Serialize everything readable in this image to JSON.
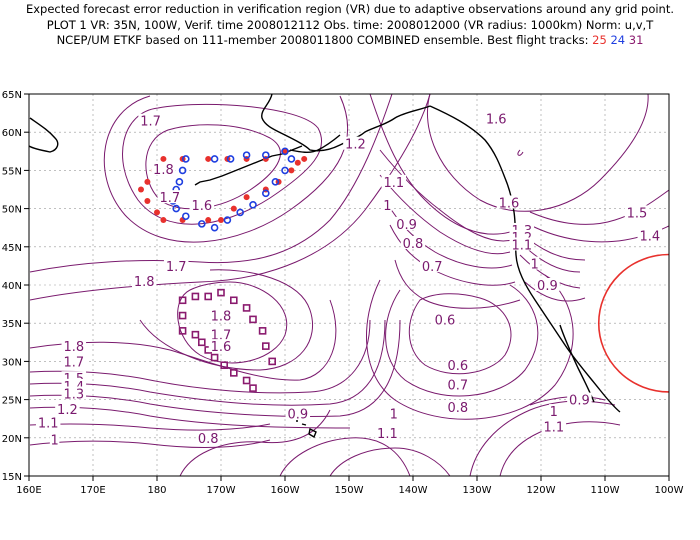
{
  "title": {
    "line1": "Expected forecast error reduction in verification region (VR) due to adaptive observations around any grid point.",
    "line2": "PLOT 1 VR: 35N, 100W, Verif. time 2008012112 Obs. time: 2008012000 (VR radius: 1000km) Norm: u,v,T",
    "line3_prefix": "NCEP/UM ETKF based on 111-member 2008011800 COMBINED ensemble.  Best flight tracks:",
    "track_25": "25",
    "track_24": "24",
    "track_31": "31"
  },
  "colors": {
    "contour": "#7a1a6e",
    "track_25": "#e8312d",
    "track_24": "#1f3fe0",
    "track_31": "#8a1a6e",
    "vr_circle": "#e8312d"
  },
  "axes": {
    "lon_labels": [
      "160E",
      "170E",
      "180",
      "170W",
      "160W",
      "150W",
      "140W",
      "130W",
      "120W",
      "110W",
      "100W"
    ],
    "lat_labels": [
      "65N",
      "60N",
      "55N",
      "50N",
      "45N",
      "40N",
      "35N",
      "30N",
      "25N",
      "20N",
      "15N"
    ]
  },
  "contour_labels": [
    {
      "t": "1.7",
      "lon": 179,
      "lat": 61.5
    },
    {
      "t": "1.8",
      "lon": -179,
      "lat": 55.2
    },
    {
      "t": "1.7",
      "lon": -178,
      "lat": 51.5
    },
    {
      "t": "1.6",
      "lon": -173,
      "lat": 50.5
    },
    {
      "t": "1.2",
      "lon": -149,
      "lat": 58.5
    },
    {
      "t": "1.1",
      "lon": -143,
      "lat": 53.5
    },
    {
      "t": "1",
      "lon": -144,
      "lat": 50.5
    },
    {
      "t": "0.9",
      "lon": -141,
      "lat": 48
    },
    {
      "t": "0.8",
      "lon": -140,
      "lat": 45.5
    },
    {
      "t": "0.7",
      "lon": -137,
      "lat": 42.5
    },
    {
      "t": "1.6",
      "lon": -127,
      "lat": 61.8
    },
    {
      "t": "1.6",
      "lon": -125,
      "lat": 50.8
    },
    {
      "t": "1.5",
      "lon": -105,
      "lat": 49.5
    },
    {
      "t": "1.4",
      "lon": -103,
      "lat": 46.5
    },
    {
      "t": "1.3",
      "lon": -123,
      "lat": 47.2
    },
    {
      "t": "1.2",
      "lon": -123,
      "lat": 46.3
    },
    {
      "t": "1.1",
      "lon": -123,
      "lat": 45.3
    },
    {
      "t": "1",
      "lon": -121,
      "lat": 42.8
    },
    {
      "t": "0.9",
      "lon": -119,
      "lat": 40
    },
    {
      "t": "1.7",
      "lon": -177,
      "lat": 42.5
    },
    {
      "t": "1.8",
      "lon": 178,
      "lat": 40.5
    },
    {
      "t": "1.8",
      "lon": -170,
      "lat": 36
    },
    {
      "t": "1.7",
      "lon": -170,
      "lat": 33.5
    },
    {
      "t": "1.6",
      "lon": -170,
      "lat": 32
    },
    {
      "t": "1.8",
      "lon": 167,
      "lat": 32
    },
    {
      "t": "1.7",
      "lon": 167,
      "lat": 30
    },
    {
      "t": "1.5",
      "lon": 167,
      "lat": 27.8
    },
    {
      "t": "1.4",
      "lon": 167,
      "lat": 26.8
    },
    {
      "t": "1.3",
      "lon": 167,
      "lat": 25.8
    },
    {
      "t": "1.2",
      "lon": 166,
      "lat": 23.8
    },
    {
      "t": "1.1",
      "lon": 163,
      "lat": 22
    },
    {
      "t": "1",
      "lon": 164,
      "lat": 19.8
    },
    {
      "t": "0.9",
      "lon": -158,
      "lat": 23.2
    },
    {
      "t": "0.8",
      "lon": -172,
      "lat": 20
    },
    {
      "t": "1",
      "lon": -143,
      "lat": 23.2
    },
    {
      "t": "1.1",
      "lon": -144,
      "lat": 20.6
    },
    {
      "t": "0.6",
      "lon": -135,
      "lat": 35.5
    },
    {
      "t": "0.6",
      "lon": -133,
      "lat": 29.5
    },
    {
      "t": "0.7",
      "lon": -133,
      "lat": 27
    },
    {
      "t": "0.8",
      "lon": -133,
      "lat": 24
    },
    {
      "t": "1",
      "lon": -118,
      "lat": 23.5
    },
    {
      "t": "1.1",
      "lon": -118,
      "lat": 21.5
    },
    {
      "t": "0.9",
      "lon": -114,
      "lat": 25
    }
  ],
  "verification_region": {
    "lon": -100,
    "lat": 35,
    "radius_km": 1000
  },
  "tracks": {
    "red": [
      [
        -179,
        56.5
      ],
      [
        -180.5,
        55
      ],
      [
        -181.5,
        53.5
      ],
      [
        -182.5,
        52.5
      ],
      [
        -181.5,
        51
      ],
      [
        -180,
        49.5
      ],
      [
        -179,
        48.5
      ],
      [
        -176,
        48.5
      ],
      [
        -172,
        48.5
      ],
      [
        -170,
        48.5
      ],
      [
        -168,
        50
      ],
      [
        -166,
        51.5
      ],
      [
        -163,
        52.5
      ],
      [
        -161,
        53.5
      ],
      [
        -159,
        55
      ],
      [
        -158,
        56
      ],
      [
        -157,
        56.5
      ],
      [
        -160,
        57.5
      ],
      [
        -163,
        56.5
      ],
      [
        -166,
        56.5
      ],
      [
        -169,
        56.5
      ],
      [
        -172,
        56.5
      ],
      [
        -176,
        56.5
      ]
    ],
    "blue": [
      [
        -175.5,
        56.5
      ],
      [
        -176,
        55
      ],
      [
        -176.5,
        53.5
      ],
      [
        -177,
        52.5
      ],
      [
        -177.5,
        51
      ],
      [
        -177,
        50
      ],
      [
        -175.5,
        49
      ],
      [
        -173,
        48
      ],
      [
        -171,
        47.5
      ],
      [
        -169,
        48.5
      ],
      [
        -167,
        49.5
      ],
      [
        -165,
        50.5
      ],
      [
        -163,
        52
      ],
      [
        -161.5,
        53.5
      ],
      [
        -160,
        55
      ],
      [
        -159,
        56.5
      ],
      [
        -160,
        57.5
      ],
      [
        -163,
        57
      ],
      [
        -166,
        57
      ],
      [
        -168.5,
        56.5
      ],
      [
        -171,
        56.5
      ]
    ],
    "purple": [
      [
        -176,
        38
      ],
      [
        -174,
        38.5
      ],
      [
        -172,
        38.5
      ],
      [
        -170,
        39
      ],
      [
        -168,
        38
      ],
      [
        -166,
        37
      ],
      [
        -165,
        35.5
      ],
      [
        -163.5,
        34
      ],
      [
        -163,
        32
      ],
      [
        -162,
        30
      ],
      [
        -165,
        26.5
      ],
      [
        -166,
        27.5
      ],
      [
        -168,
        28.5
      ],
      [
        -169.5,
        29.5
      ],
      [
        -171,
        30.5
      ],
      [
        -172,
        31.5
      ],
      [
        -173,
        32.5
      ],
      [
        -174,
        33.5
      ],
      [
        -176,
        34
      ],
      [
        -176,
        36
      ]
    ]
  }
}
